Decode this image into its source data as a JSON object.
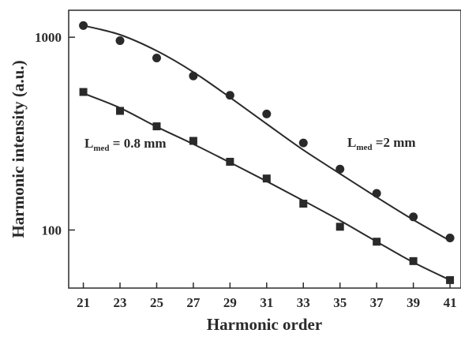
{
  "chart_data": {
    "type": "scatter",
    "title": "",
    "xlabel": "Harmonic order",
    "ylabel": "Harmonic intensity (a.u.)",
    "x_ticks": [
      21,
      23,
      25,
      27,
      29,
      31,
      33,
      35,
      37,
      39,
      41
    ],
    "y_ticks": [
      100,
      1000
    ],
    "y_scale": "log",
    "xlim": [
      20.2,
      41.6
    ],
    "ylim": [
      50,
      1380
    ],
    "grid": false,
    "legend": "none",
    "series": [
      {
        "name": "",
        "marker": "circle",
        "color": "#2a2a2a",
        "annotation": {
          "main": "L",
          "sub": "med",
          "rest": " =2 mm"
        },
        "x": [
          21,
          23,
          25,
          27,
          29,
          31,
          33,
          35,
          37,
          39,
          41
        ],
        "y": [
          1150,
          960,
          780,
          630,
          500,
          400,
          283,
          207,
          155,
          117,
          91
        ],
        "fit": [
          1150,
          1030,
          850,
          660,
          487,
          355,
          260,
          196,
          148,
          113,
          88
        ]
      },
      {
        "name": "",
        "marker": "square",
        "color": "#2a2a2a",
        "annotation": {
          "main": "L",
          "sub": "med",
          "rest": " = 0.8 mm"
        },
        "x": [
          21,
          23,
          25,
          27,
          29,
          31,
          33,
          35,
          37,
          39,
          41
        ],
        "y": [
          520,
          415,
          345,
          290,
          226,
          185,
          137,
          104,
          87,
          69,
          55
        ],
        "fit": [
          512,
          430,
          343,
          279,
          224,
          179,
          142,
          112,
          87,
          68,
          55
        ]
      }
    ]
  }
}
